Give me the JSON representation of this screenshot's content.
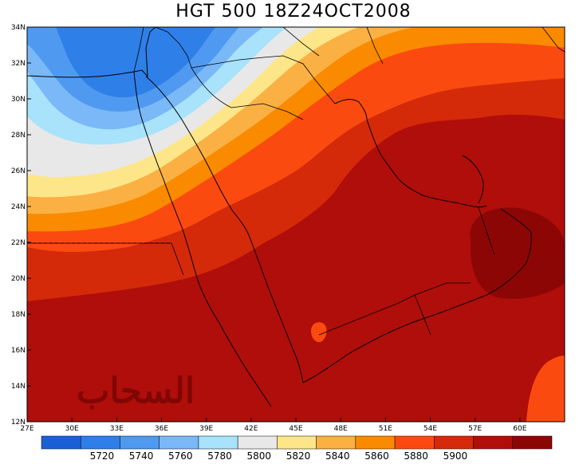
{
  "title": "HGT 500  18Z24OCT2008",
  "watermark": "السحاب",
  "map": {
    "lon_range": [
      27,
      63
    ],
    "lat_range": [
      12,
      34
    ],
    "lon_ticks": [
      "27E",
      "30E",
      "33E",
      "36E",
      "39E",
      "42E",
      "45E",
      "48E",
      "51E",
      "54E",
      "57E",
      "60E"
    ],
    "lat_ticks": [
      "12N",
      "14N",
      "16N",
      "18N",
      "20N",
      "22N",
      "24N",
      "26N",
      "28N",
      "30N",
      "32N",
      "34N"
    ],
    "reference_line_lat": 22
  },
  "colorbar": {
    "colors": [
      "#1b5fd6",
      "#2f7fe8",
      "#4f9af0",
      "#7ab8f7",
      "#a8e2fb",
      "#e8e8e8",
      "#fde68a",
      "#fbb044",
      "#fa8a00",
      "#fb4a10",
      "#d42a0a",
      "#b00e0a",
      "#8d0606"
    ],
    "labels": [
      "5720",
      "5740",
      "5760",
      "5780",
      "5800",
      "5820",
      "5840",
      "5860",
      "5880",
      "5900"
    ]
  }
}
